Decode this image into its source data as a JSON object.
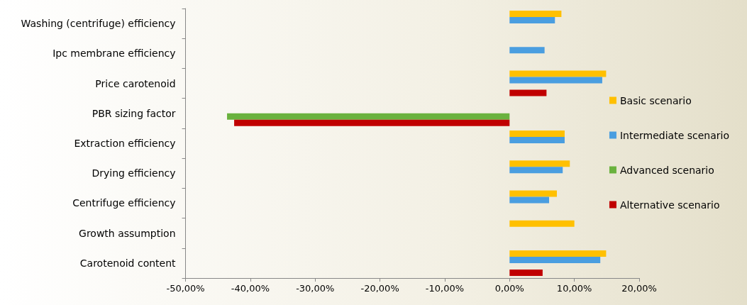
{
  "chart_data": {
    "type": "bar",
    "orientation": "horizontal",
    "categories": [
      "Washing (centrifuge) efficiency",
      "Ipc membrane efficiency",
      "Price carotenoid",
      "PBR sizing factor",
      "Extraction efficiency",
      "Drying efficiency",
      "Centrifuge efficiency",
      "Growth assumption",
      "Carotenoid content"
    ],
    "series": [
      {
        "name": "Basic scenario",
        "color": "#ffc000",
        "values": [
          0.08,
          null,
          0.149,
          null,
          0.085,
          0.093,
          0.073,
          0.1,
          0.149
        ]
      },
      {
        "name": "Intermediate scenario",
        "color": "#4a9ee0",
        "values": [
          0.07,
          0.054,
          0.143,
          null,
          0.085,
          0.082,
          0.061,
          null,
          0.14
        ]
      },
      {
        "name": "Advanced scenario",
        "color": "#6ab23e",
        "values": [
          null,
          null,
          null,
          -0.436,
          null,
          null,
          null,
          null,
          null
        ]
      },
      {
        "name": "Alternative scenario",
        "color": "#c00000",
        "values": [
          null,
          null,
          0.057,
          -0.425,
          null,
          null,
          null,
          null,
          0.051
        ]
      }
    ],
    "xlim": [
      -0.5,
      0.2
    ],
    "xticks": [
      {
        "value": -0.5,
        "label": "-50,00%"
      },
      {
        "value": -0.4,
        "label": "-40,00%"
      },
      {
        "value": -0.3,
        "label": "-30,00%"
      },
      {
        "value": -0.2,
        "label": "-20,00%"
      },
      {
        "value": -0.1,
        "label": "-10,00%"
      },
      {
        "value": 0,
        "label": "0,00%"
      },
      {
        "value": 0.1,
        "label": "10,00%"
      },
      {
        "value": 0.2,
        "label": "20,00%"
      }
    ],
    "grid": false,
    "legend": "right"
  }
}
